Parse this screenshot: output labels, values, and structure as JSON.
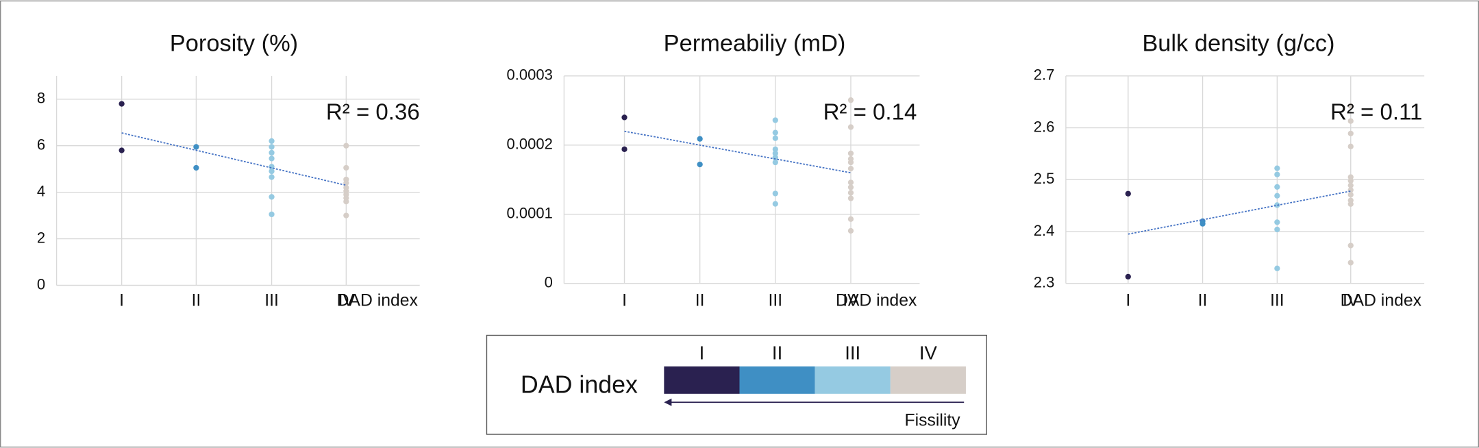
{
  "chart_data": [
    {
      "type": "scatter",
      "title": "Porosity (%)",
      "x_label": "DAD index",
      "annotation": "R² = 0.36",
      "categories": [
        "I",
        "II",
        "III",
        "IV"
      ],
      "ylim": [
        0,
        9
      ],
      "yticks": [
        0,
        2,
        4,
        6,
        8
      ],
      "grid": true,
      "series": [
        {
          "name": "I",
          "color": "#2a2150",
          "values": [
            7.8,
            5.8
          ]
        },
        {
          "name": "II",
          "color": "#3f8fc4",
          "values": [
            5.95,
            5.05
          ]
        },
        {
          "name": "III",
          "color": "#95cae2",
          "values": [
            6.2,
            5.95,
            5.7,
            5.45,
            5.1,
            4.9,
            4.65,
            3.8,
            3.05
          ]
        },
        {
          "name": "IV",
          "color": "#d6cec8",
          "values": [
            6.0,
            5.05,
            4.55,
            4.4,
            4.2,
            4.05,
            3.9,
            3.75,
            3.6,
            3.0
          ]
        }
      ],
      "trendline": {
        "color": "#4472c4",
        "values": [
          6.55,
          4.3
        ]
      }
    },
    {
      "type": "scatter",
      "title": "Permeabiliy (mD)",
      "x_label": "DAD index",
      "annotation": "R² = 0.14",
      "categories": [
        "I",
        "II",
        "III",
        "IV"
      ],
      "ylim": [
        0,
        0.0003
      ],
      "yticks": [
        0,
        0.0001,
        0.0002,
        0.0003
      ],
      "grid": true,
      "series": [
        {
          "name": "I",
          "color": "#2a2150",
          "values": [
            0.00024,
            0.000194
          ]
        },
        {
          "name": "II",
          "color": "#3f8fc4",
          "values": [
            0.000209,
            0.000172
          ]
        },
        {
          "name": "III",
          "color": "#95cae2",
          "values": [
            0.000236,
            0.000218,
            0.00021,
            0.000194,
            0.000188,
            0.000182,
            0.000175,
            0.00013,
            0.000115
          ]
        },
        {
          "name": "IV",
          "color": "#d6cec8",
          "values": [
            0.000265,
            0.000226,
            0.000188,
            0.00018,
            0.000175,
            0.000166,
            0.000146,
            0.000139,
            0.000131,
            0.000123,
            9.3e-05,
            7.6e-05
          ]
        }
      ],
      "trendline": {
        "color": "#4472c4",
        "values": [
          0.00022,
          0.00016
        ]
      }
    },
    {
      "type": "scatter",
      "title": "Bulk density (g/cc)",
      "x_label": "DAD index",
      "annotation": "R² = 0.11",
      "categories": [
        "I",
        "II",
        "III",
        "IV"
      ],
      "ylim": [
        2.3,
        2.7
      ],
      "yticks": [
        2.3,
        2.4,
        2.5,
        2.6,
        2.7
      ],
      "grid": true,
      "series": [
        {
          "name": "I",
          "color": "#2a2150",
          "values": [
            2.473,
            2.313
          ]
        },
        {
          "name": "II",
          "color": "#3f8fc4",
          "values": [
            2.42,
            2.415
          ]
        },
        {
          "name": "III",
          "color": "#95cae2",
          "values": [
            2.522,
            2.51,
            2.486,
            2.469,
            2.451,
            2.418,
            2.404,
            2.329
          ]
        },
        {
          "name": "IV",
          "color": "#d6cec8",
          "values": [
            2.642,
            2.613,
            2.589,
            2.564,
            2.505,
            2.498,
            2.489,
            2.48,
            2.471,
            2.46,
            2.453,
            2.373,
            2.34
          ]
        }
      ],
      "trendline": {
        "color": "#4472c4",
        "values": [
          2.395,
          2.478
        ]
      }
    }
  ],
  "legend": {
    "title": "DAD index",
    "note": "Fissility"
  }
}
